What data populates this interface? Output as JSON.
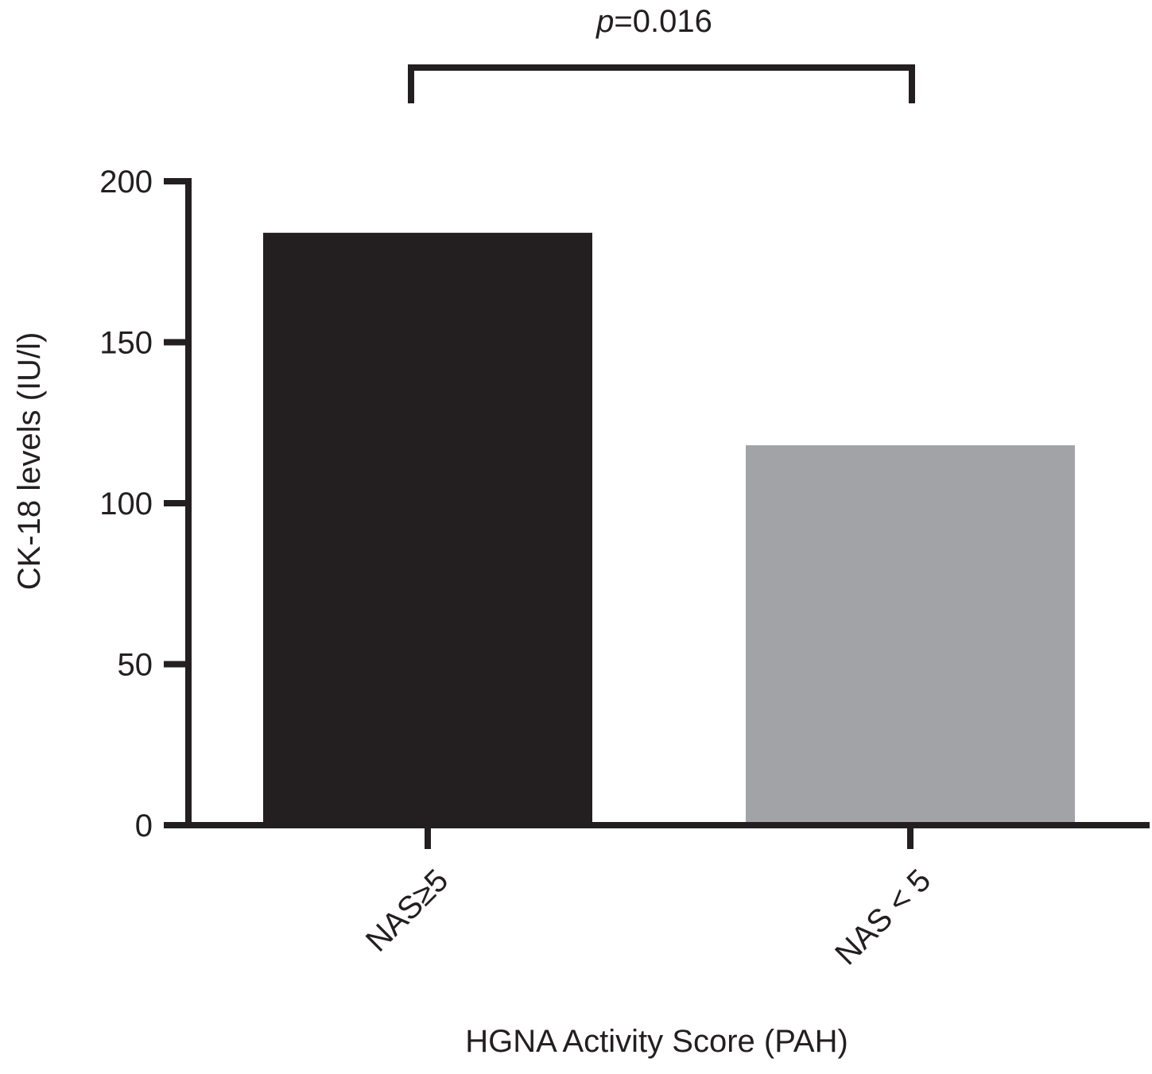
{
  "chart_data": {
    "type": "bar",
    "title": "",
    "xlabel": "HGNA Activity Score (PAH)",
    "ylabel": "CK-18 levels (IU/l)",
    "categories": [
      "NAS≥5",
      "NAS < 5"
    ],
    "series": [
      {
        "values": [
          184,
          118
        ]
      }
    ],
    "bar_colors": [
      "#231f20",
      "#a1a3a6"
    ],
    "ylim": [
      0,
      200
    ],
    "yticks": [
      0,
      50,
      100,
      150,
      200
    ],
    "ytick_labels": [
      "0",
      "50",
      "100",
      "150",
      "200"
    ],
    "grid": false,
    "legend": "none",
    "annotations": [
      {
        "type": "significance-bracket",
        "from": 0,
        "to": 1,
        "prefix": "p",
        "text": "=0.016"
      }
    ]
  }
}
